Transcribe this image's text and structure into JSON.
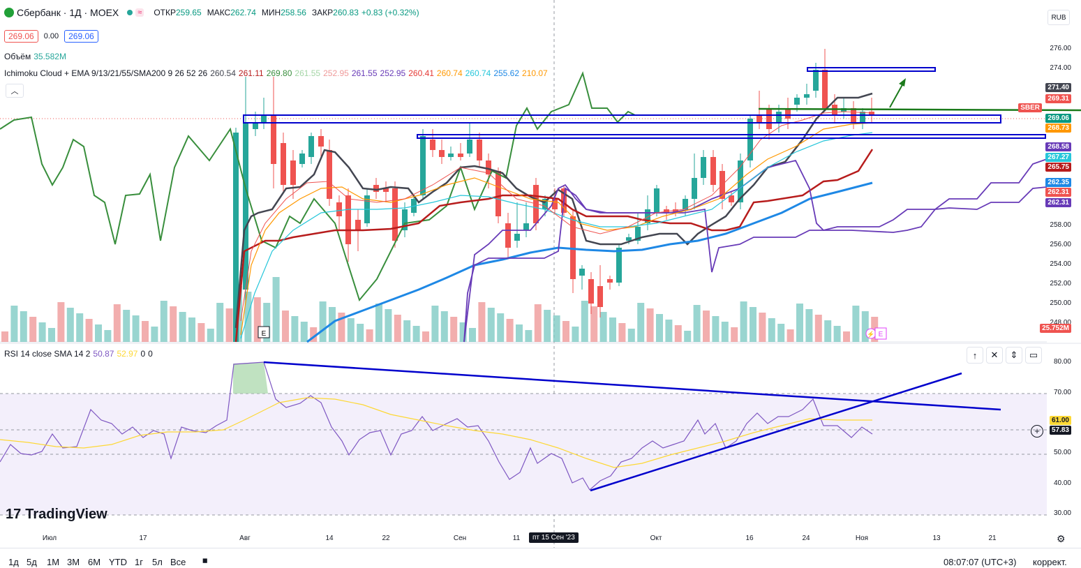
{
  "header": {
    "symbol": "Сбербанк · 1Д · MOEX",
    "open_label": "ОТКР",
    "open": "259.65",
    "high_label": "МАКС",
    "high": "262.74",
    "low_label": "МИН",
    "low": "258.56",
    "close_label": "ЗАКР",
    "close": "260.83",
    "change": "+0.83 (+0.32%)",
    "bid": "269.06",
    "spread": "0.00",
    "ask": "269.06",
    "currency": "RUB"
  },
  "volume_legend": {
    "label": "Объём",
    "value": "35.582M"
  },
  "indicator_legend": {
    "name": "Ichimoku Cloud + EMA 9/13/21/55/SMA200 9 26 52 26",
    "values": [
      {
        "v": "260.54",
        "color": "#434651"
      },
      {
        "v": "261.11",
        "color": "#b71c1c"
      },
      {
        "v": "269.80",
        "color": "#388e3c"
      },
      {
        "v": "261.55",
        "color": "#a5d6a7"
      },
      {
        "v": "252.95",
        "color": "#ef9a9a"
      },
      {
        "v": "261.55",
        "color": "#673ab7"
      },
      {
        "v": "252.95",
        "color": "#673ab7"
      },
      {
        "v": "260.41",
        "color": "#e53935"
      },
      {
        "v": "260.74",
        "color": "#ff9800"
      },
      {
        "v": "260.74",
        "color": "#26c6da"
      },
      {
        "v": "255.62",
        "color": "#1e88e5"
      },
      {
        "v": "210.07",
        "color": "#ff9800"
      }
    ]
  },
  "price_axis": {
    "ticks": [
      "276.00",
      "274.00",
      "258.00",
      "256.00",
      "254.00",
      "252.00",
      "250.00",
      "248.00"
    ],
    "tags": [
      {
        "v": "271.40",
        "bg": "#434651"
      },
      {
        "v": "269.31",
        "bg": "#ef5350"
      },
      {
        "v": "269.06",
        "bg": "#089981"
      },
      {
        "v": "268.73",
        "bg": "#ff9800"
      },
      {
        "v": "268.58",
        "bg": "#673ab7"
      },
      {
        "v": "267.27",
        "bg": "#26c6da"
      },
      {
        "v": "265.75",
        "bg": "#b71c1c"
      },
      {
        "v": "262.35",
        "bg": "#1e88e5"
      },
      {
        "v": "262.31",
        "bg": "#ef5350"
      },
      {
        "v": "262.31",
        "bg": "#673ab7"
      },
      {
        "v": "25.752M",
        "bg": "#ef5350"
      }
    ],
    "symbol_tag": "SBER"
  },
  "rsi_legend": {
    "name": "RSI 14 close SMA 14 2",
    "rsi": "50.87",
    "sma": "52.97",
    "z1": "0",
    "z2": "0"
  },
  "rsi_axis": {
    "ticks": [
      "80.00",
      "70.00",
      "50.00",
      "40.00",
      "30.00"
    ],
    "rsi_tag": "57.83",
    "sma_tag": "61.00"
  },
  "time_axis": [
    "Июл",
    "17",
    "Авг",
    "14",
    "22",
    "Сен",
    "11",
    "Окт",
    "16",
    "24",
    "Ноя",
    "13",
    "21"
  ],
  "crosshair_date": "пт 15 Сен '23",
  "bottom": {
    "ranges": [
      "1д",
      "5д",
      "1М",
      "3М",
      "6М",
      "YTD",
      "1г",
      "5л",
      "Все"
    ],
    "clock": "08:07:07 (UTC+3)",
    "adjust": "коррект."
  },
  "watermark": "TradingView",
  "colors": {
    "up": "#26a69a",
    "down": "#ef5350",
    "rsi": "#7e57c2",
    "rsi_sma": "#fdd835",
    "drawing": "#0000cc"
  }
}
